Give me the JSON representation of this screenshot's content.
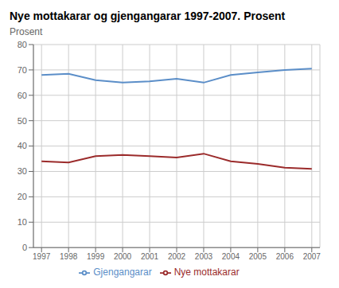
{
  "chart_data": {
    "type": "line",
    "title": "Nye mottakarar og gjengangarar 1997-2007. Prosent",
    "ylabel": "Prosent",
    "x": [
      1997,
      1998,
      1999,
      2000,
      2001,
      2002,
      2003,
      2004,
      2005,
      2006,
      2007
    ],
    "series": [
      {
        "name": "Gjengangarar",
        "color": "#5B8EC8",
        "values": [
          68,
          68.5,
          66,
          65,
          65.5,
          66.5,
          65,
          68,
          69,
          70,
          70.5
        ]
      },
      {
        "name": "Nye mottakarar",
        "color": "#9B2B2B",
        "values": [
          34,
          33.5,
          36,
          36.5,
          36,
          35.5,
          37,
          34,
          33,
          31.5,
          31
        ]
      }
    ],
    "xlim": [
      1996.7,
      2007.3
    ],
    "xticks": [
      1997,
      1998,
      1999,
      2000,
      2001,
      2002,
      2003,
      2004,
      2005,
      2006,
      2007
    ],
    "ylim": [
      0,
      80
    ],
    "yticks": [
      0,
      10,
      20,
      30,
      40,
      50,
      60,
      70,
      80
    ],
    "grid": true,
    "legend": "bottom"
  }
}
